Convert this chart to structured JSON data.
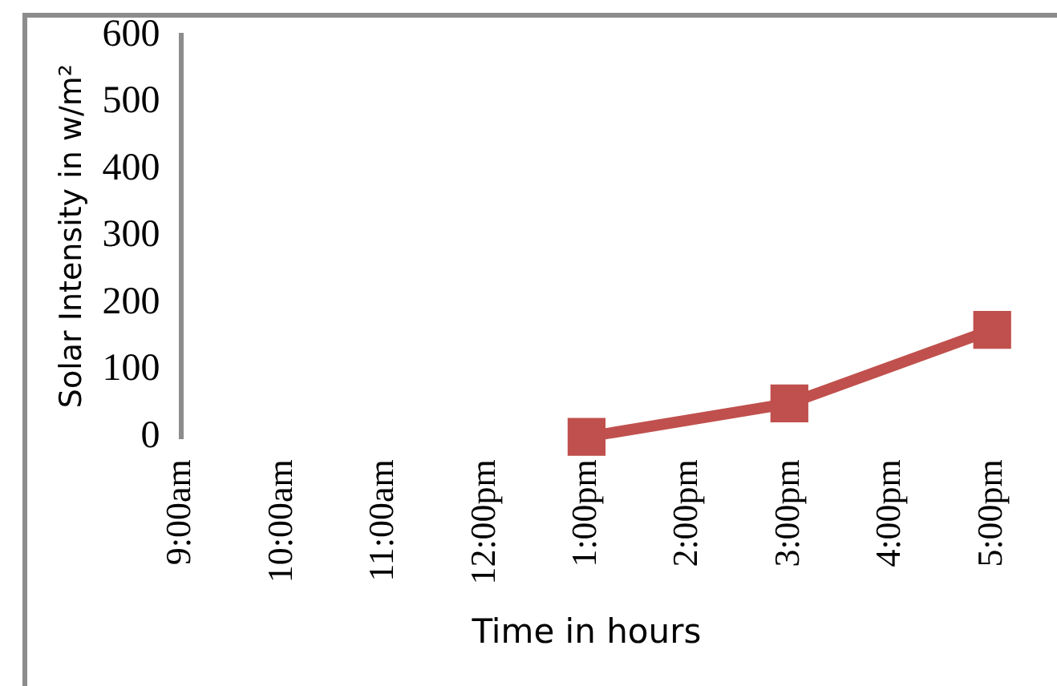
{
  "chart_data": {
    "type": "line",
    "xlabel": "Time in hours",
    "ylabel": "Solar Intensity in w/m²",
    "categories": [
      "9:00am",
      "10:00am",
      "11:00am",
      "12:00pm",
      "1:00pm",
      "2:00pm",
      "3:00pm",
      "4:00pm",
      "5:00pm"
    ],
    "series": [
      {
        "color": "#c0504d",
        "values": [
          null,
          null,
          null,
          null,
          0,
          null,
          50,
          null,
          160
        ]
      }
    ],
    "ylim": [
      0,
      600
    ],
    "yticks": [
      0,
      100,
      200,
      300,
      400,
      500,
      600
    ],
    "grid": false,
    "legend": false,
    "marker": "square",
    "line_style": "solid"
  }
}
